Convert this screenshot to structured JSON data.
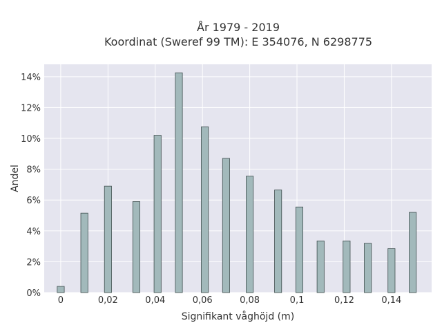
{
  "chart_data": {
    "type": "bar",
    "title_line1": "År 1979 - 2019",
    "title_line2": "Koordinat (Sweref 99 TM): E 354076, N 6298775",
    "xlabel": "Signifikant våghöjd (m)",
    "ylabel": "Andel",
    "xlim": [
      -0.007,
      0.157
    ],
    "ylim": [
      0,
      14.8
    ],
    "x_ticks": [
      {
        "value": 0,
        "label": "0"
      },
      {
        "value": 0.02,
        "label": "0,02"
      },
      {
        "value": 0.04,
        "label": "0,04"
      },
      {
        "value": 0.06,
        "label": "0,06"
      },
      {
        "value": 0.08,
        "label": "0,08"
      },
      {
        "value": 0.1,
        "label": "0,1"
      },
      {
        "value": 0.12,
        "label": "0,12"
      },
      {
        "value": 0.14,
        "label": "0,14"
      }
    ],
    "y_ticks": [
      {
        "value": 0,
        "label": "0%"
      },
      {
        "value": 2,
        "label": "2%"
      },
      {
        "value": 4,
        "label": "4%"
      },
      {
        "value": 6,
        "label": "6%"
      },
      {
        "value": 8,
        "label": "8%"
      },
      {
        "value": 10,
        "label": "10%"
      },
      {
        "value": 12,
        "label": "12%"
      },
      {
        "value": 14,
        "label": "14%"
      }
    ],
    "bar_width": 0.003,
    "x": [
      0.0,
      0.01,
      0.02,
      0.032,
      0.041,
      0.05,
      0.061,
      0.07,
      0.08,
      0.092,
      0.101,
      0.11,
      0.121,
      0.13,
      0.14,
      0.149
    ],
    "values": [
      0.4,
      5.15,
      6.9,
      5.9,
      10.2,
      14.25,
      10.75,
      8.7,
      7.55,
      6.65,
      5.55,
      3.35,
      3.35,
      3.2,
      2.85,
      5.2
    ],
    "colors": {
      "bar_fill": "#a2b9bb",
      "bar_stroke": "#3e4d4d",
      "plot_bg": "#e5e5ef",
      "grid": "#ffffff",
      "text": "#333333"
    }
  }
}
